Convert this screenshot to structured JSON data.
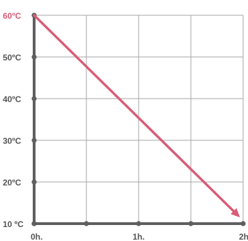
{
  "chart_data": {
    "type": "line",
    "title": "",
    "xlabel": "",
    "ylabel": "",
    "x_ticks": [
      {
        "value": 0,
        "label": "0h."
      },
      {
        "value": 0.5,
        "label": ""
      },
      {
        "value": 1,
        "label": "1h."
      },
      {
        "value": 1.5,
        "label": ""
      },
      {
        "value": 2,
        "label": "2h."
      }
    ],
    "y_ticks": [
      {
        "value": 10,
        "label": "10 ºC"
      },
      {
        "value": 20,
        "label": "20ºC"
      },
      {
        "value": 30,
        "label": "30ºC"
      },
      {
        "value": 40,
        "label": "40ºC"
      },
      {
        "value": 50,
        "label": "50ºC"
      },
      {
        "value": 60,
        "label": "60ºC"
      }
    ],
    "xlim": [
      0,
      2
    ],
    "ylim": [
      10,
      60
    ],
    "grid": true,
    "series": [
      {
        "x": [
          0,
          1.97
        ],
        "y": [
          60,
          11.5
        ],
        "color": "#d85d78",
        "arrow": true
      }
    ],
    "highlight_label_color": "#d85d78",
    "axis_color": "#5f5f5f",
    "grid_color": "#a6a6a6"
  }
}
